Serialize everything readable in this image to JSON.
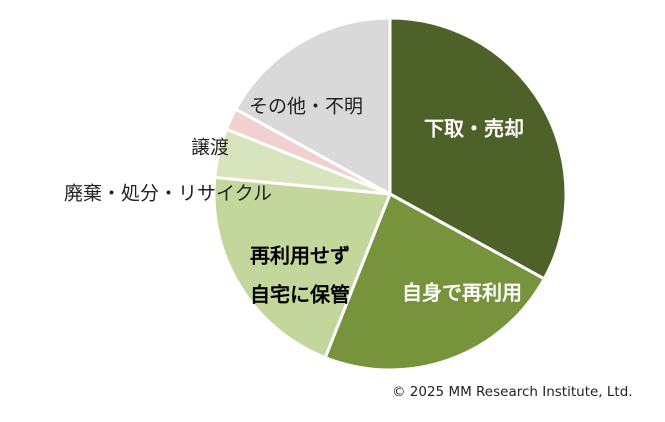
{
  "chart_data": {
    "type": "pie",
    "title": "",
    "slices": [
      {
        "label": "下取・売却",
        "value": 33,
        "color": "#4e6128"
      },
      {
        "label": "自身で再利用",
        "value": 23,
        "color": "#77933c"
      },
      {
        "label": "再利用せず自宅に保管",
        "value": 20.5,
        "color": "#c3d69b"
      },
      {
        "label": "廃棄・処分・リサイクル",
        "value": 4.5,
        "color": "#d7e4bd"
      },
      {
        "label": "譲渡",
        "value": 2,
        "color": "#f2d0d0"
      },
      {
        "label": "その他・不明",
        "value": 17,
        "color": "#d9d9d9"
      }
    ]
  },
  "footer": {
    "copyright": "© 2025 MM Research Institute, Ltd."
  }
}
